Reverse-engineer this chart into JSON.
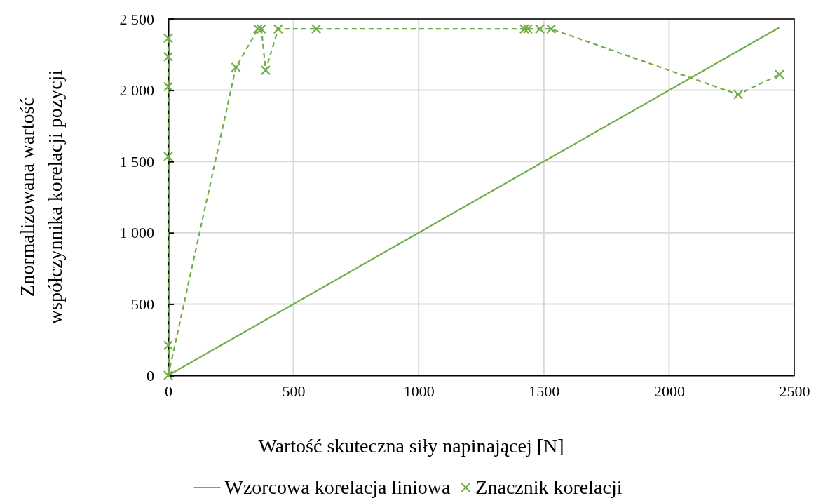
{
  "chart_data": {
    "type": "line",
    "xlabel": "Wartość skuteczna siły napinającej [N]",
    "ylabel": "Znormalizowana wartość\nwspółczynnika korelacji pozycji",
    "xlim": [
      0,
      2500
    ],
    "ylim": [
      0,
      2500
    ],
    "xticks": [
      0,
      500,
      1000,
      1500,
      2000,
      2500
    ],
    "yticks": [
      0,
      {
        "value": 500,
        "label": "500"
      },
      {
        "value": 1000,
        "label": "1 000"
      },
      {
        "value": 1500,
        "label": "1 500"
      },
      {
        "value": 2000,
        "label": "2 000"
      },
      {
        "value": 2500,
        "label": "2 500"
      }
    ],
    "grid": true,
    "legend": "bottom",
    "series": [
      {
        "name": "Wzorcowa korelacja liniowa",
        "color": "#70ad47",
        "line_style": "solid",
        "x": [
          0,
          2440
        ],
        "values": [
          0,
          2440
        ]
      },
      {
        "name": "Znacznik korelacji",
        "color": "#70ad47",
        "marker": "cross",
        "line_style": "dashed",
        "x": [
          0,
          0,
          0,
          0,
          0,
          0,
          270,
          358,
          372,
          389,
          439,
          591,
          1422,
          1436,
          1484,
          1529,
          2276,
          2441
        ],
        "values": [
          2365,
          2235,
          2025,
          1535,
          210,
          0,
          2160,
          2430,
          2430,
          2140,
          2430,
          2430,
          2430,
          2430,
          2430,
          2430,
          1970,
          2110
        ]
      }
    ]
  }
}
